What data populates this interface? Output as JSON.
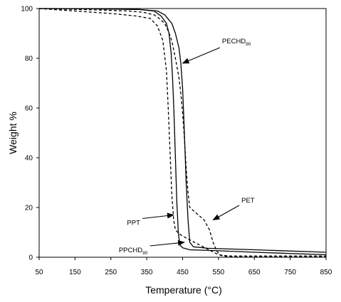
{
  "chart_data": {
    "type": "line",
    "title": "",
    "xlabel": "Temperature (°C)",
    "ylabel": "Weight %",
    "xlim": [
      50,
      850
    ],
    "ylim": [
      0,
      100
    ],
    "x_ticks": [
      "50",
      "150",
      "250",
      "350",
      "450",
      "550",
      "650",
      "750",
      "850"
    ],
    "y_ticks": [
      "0",
      "20",
      "40",
      "60",
      "80",
      "100"
    ],
    "grid": false,
    "legend": "none",
    "series": [
      {
        "name": "PECHD90",
        "style": "solid",
        "x": [
          50,
          200,
          330,
          380,
          400,
          420,
          430,
          440,
          445,
          450,
          455,
          460,
          465,
          470,
          480,
          520,
          650,
          850
        ],
        "y": [
          100,
          99.9,
          99.6,
          99,
          97.5,
          94,
          90,
          84,
          78,
          68,
          50,
          30,
          15,
          6,
          4.2,
          3.6,
          3.0,
          2.0
        ]
      },
      {
        "name": "PPCHD90",
        "style": "solid",
        "x": [
          50,
          200,
          330,
          370,
          390,
          405,
          412,
          418,
          422,
          426,
          430,
          434,
          438,
          442,
          450,
          470,
          550,
          650,
          850
        ],
        "y": [
          100,
          99.9,
          99.6,
          99,
          97,
          94,
          90,
          82,
          72,
          58,
          40,
          22,
          10,
          5,
          3.8,
          3.0,
          2.6,
          2.0,
          1.0
        ]
      },
      {
        "name": "PPT",
        "style": "dashed",
        "x": [
          50,
          150,
          250,
          320,
          360,
          380,
          395,
          405,
          410,
          415,
          420,
          425,
          430,
          440,
          450,
          470,
          490,
          510,
          530,
          550,
          580,
          850
        ],
        "y": [
          100,
          99,
          98,
          97,
          96,
          93,
          87,
          75,
          60,
          42,
          25,
          15,
          11,
          9.5,
          8.5,
          7,
          5.5,
          4,
          2.5,
          1,
          0.5,
          0.5
        ]
      },
      {
        "name": "PET",
        "style": "dashed",
        "x": [
          50,
          200,
          300,
          340,
          370,
          385,
          400,
          410,
          420,
          430,
          440,
          445,
          450,
          455,
          460,
          465,
          470,
          490,
          510,
          525,
          535,
          545,
          555,
          570,
          600,
          850
        ],
        "y": [
          100,
          99.5,
          99,
          98.5,
          97.5,
          96,
          94,
          91,
          87,
          80,
          72,
          66,
          58,
          48,
          36,
          26,
          20,
          17.5,
          15,
          11,
          6,
          2.5,
          0.8,
          0.3,
          0.2,
          0.2
        ]
      }
    ],
    "annotations": [
      {
        "text": "PECHD",
        "sub": "90",
        "x": 560,
        "y": 86,
        "arrow_to": [
          450,
          78
        ]
      },
      {
        "text": "PET",
        "sub": "",
        "x": 614,
        "y": 22,
        "arrow_to": [
          535,
          15
        ]
      },
      {
        "text": "PPT",
        "sub": "",
        "x": 295,
        "y": 13,
        "arrow_to": [
          425,
          17
        ]
      },
      {
        "text": "PPCHD",
        "sub": "90",
        "x": 272,
        "y": 2,
        "arrow_to": [
          455,
          6
        ]
      }
    ]
  }
}
